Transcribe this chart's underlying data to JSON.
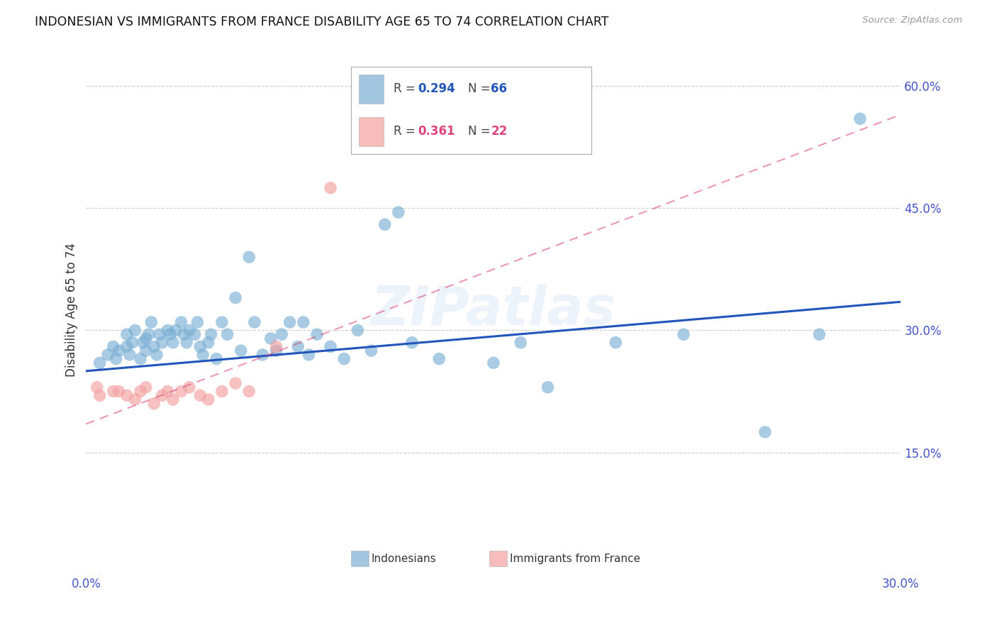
{
  "title": "INDONESIAN VS IMMIGRANTS FROM FRANCE DISABILITY AGE 65 TO 74 CORRELATION CHART",
  "source": "Source: ZipAtlas.com",
  "ylabel": "Disability Age 65 to 74",
  "right_yticks": [
    0.0,
    0.15,
    0.3,
    0.45,
    0.6
  ],
  "right_yticklabels": [
    "",
    "15.0%",
    "30.0%",
    "45.0%",
    "60.0%"
  ],
  "xlim": [
    0.0,
    0.3
  ],
  "ylim": [
    0.0,
    0.65
  ],
  "xticks": [
    0.0,
    0.05,
    0.1,
    0.15,
    0.2,
    0.25,
    0.3
  ],
  "xticklabels": [
    "0.0%",
    "",
    "",
    "",
    "",
    "",
    "30.0%"
  ],
  "legend_blue_r_label": "R = ",
  "legend_blue_r_val": "0.294",
  "legend_blue_n_label": "N = ",
  "legend_blue_n_val": "66",
  "legend_pink_r_label": "R = ",
  "legend_pink_r_val": "0.361",
  "legend_pink_n_label": "N = ",
  "legend_pink_n_val": "22",
  "legend_blue_label": "Indonesians",
  "legend_pink_label": "Immigrants from France",
  "blue_color": "#7BAFD4",
  "pink_color": "#F4A0A0",
  "blue_line_color": "#2255BB",
  "pink_line_color": "#DD4477",
  "watermark": "ZIPatlas",
  "blue_dots_x": [
    0.005,
    0.008,
    0.01,
    0.011,
    0.012,
    0.015,
    0.015,
    0.016,
    0.017,
    0.018,
    0.02,
    0.021,
    0.022,
    0.022,
    0.023,
    0.024,
    0.025,
    0.026,
    0.027,
    0.028,
    0.03,
    0.031,
    0.032,
    0.033,
    0.035,
    0.036,
    0.037,
    0.038,
    0.04,
    0.041,
    0.042,
    0.043,
    0.045,
    0.046,
    0.048,
    0.05,
    0.052,
    0.055,
    0.057,
    0.06,
    0.062,
    0.065,
    0.068,
    0.07,
    0.072,
    0.075,
    0.078,
    0.08,
    0.082,
    0.085,
    0.09,
    0.095,
    0.1,
    0.105,
    0.11,
    0.115,
    0.12,
    0.13,
    0.15,
    0.16,
    0.17,
    0.195,
    0.22,
    0.25,
    0.27,
    0.285
  ],
  "blue_dots_y": [
    0.26,
    0.27,
    0.28,
    0.265,
    0.275,
    0.28,
    0.295,
    0.27,
    0.285,
    0.3,
    0.265,
    0.285,
    0.29,
    0.275,
    0.295,
    0.31,
    0.28,
    0.27,
    0.295,
    0.285,
    0.3,
    0.295,
    0.285,
    0.3,
    0.31,
    0.295,
    0.285,
    0.3,
    0.295,
    0.31,
    0.28,
    0.27,
    0.285,
    0.295,
    0.265,
    0.31,
    0.295,
    0.34,
    0.275,
    0.39,
    0.31,
    0.27,
    0.29,
    0.275,
    0.295,
    0.31,
    0.28,
    0.31,
    0.27,
    0.295,
    0.28,
    0.265,
    0.3,
    0.275,
    0.43,
    0.445,
    0.285,
    0.265,
    0.26,
    0.285,
    0.23,
    0.285,
    0.295,
    0.175,
    0.295,
    0.56
  ],
  "pink_dots_x": [
    0.004,
    0.005,
    0.01,
    0.012,
    0.015,
    0.018,
    0.02,
    0.022,
    0.025,
    0.028,
    0.03,
    0.032,
    0.035,
    0.038,
    0.042,
    0.045,
    0.05,
    0.055,
    0.06,
    0.07,
    0.09,
    0.1
  ],
  "pink_dots_y": [
    0.23,
    0.22,
    0.225,
    0.225,
    0.22,
    0.215,
    0.225,
    0.23,
    0.21,
    0.22,
    0.225,
    0.215,
    0.225,
    0.23,
    0.22,
    0.215,
    0.225,
    0.235,
    0.225,
    0.28,
    0.475,
    0.53
  ],
  "blue_line_x": [
    0.0,
    0.3
  ],
  "blue_line_y": [
    0.25,
    0.335
  ],
  "pink_line_x": [
    0.0,
    0.3
  ],
  "pink_line_y": [
    0.185,
    0.565
  ],
  "grid_yticks": [
    0.15,
    0.3,
    0.45,
    0.6
  ]
}
